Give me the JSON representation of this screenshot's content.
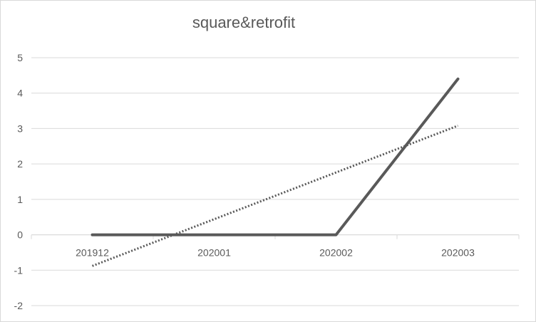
{
  "chart_data": {
    "type": "line",
    "title": "square&retrofit",
    "categories": [
      "201912",
      "202001",
      "202002",
      "202003"
    ],
    "series": [
      {
        "values": [
          0,
          0,
          0,
          4.4
        ],
        "style": "solid",
        "color": "#595959"
      }
    ],
    "trendline": {
      "type": "linear",
      "values": [
        -0.88,
        0.44,
        1.76,
        3.08
      ],
      "style": "dotted",
      "color": "#595959"
    },
    "ylim": [
      -2,
      5
    ],
    "yticks": [
      5,
      4,
      3,
      2,
      1,
      0,
      -1,
      -2
    ],
    "grid": true,
    "legend": "none",
    "gridColor": "#d9d9d9",
    "axisColor": "#d9d9d9",
    "textColor": "#595959"
  }
}
